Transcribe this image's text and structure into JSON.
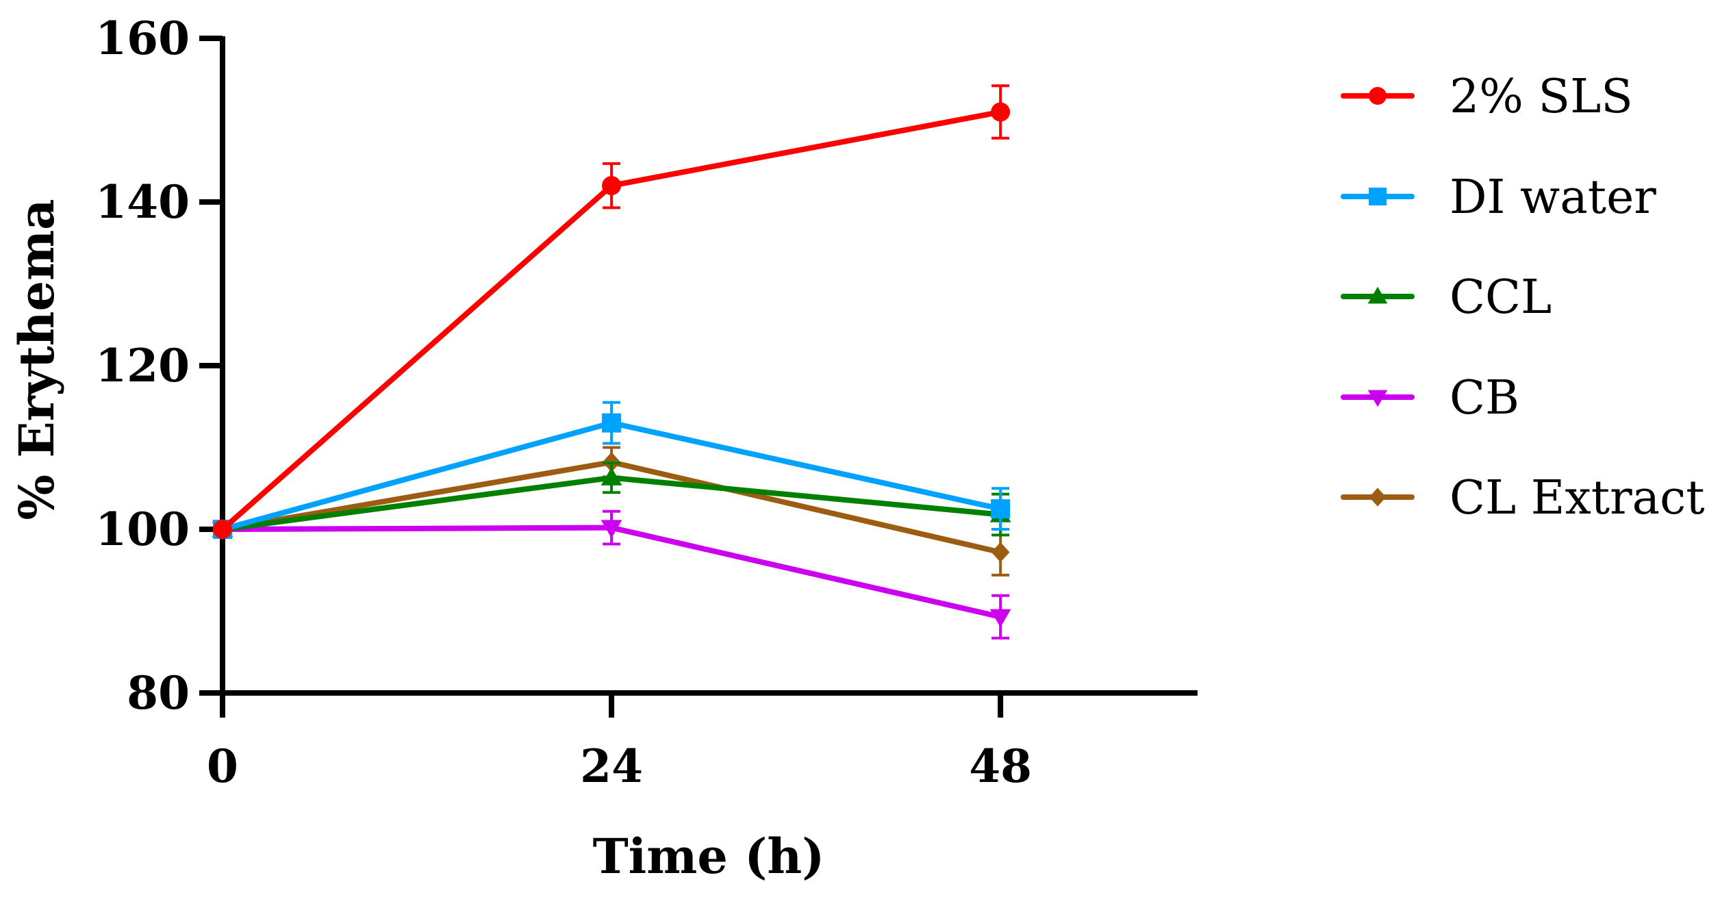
{
  "chart_data": {
    "type": "line",
    "title": "",
    "xlabel": "Time (h)",
    "ylabel": "% Erythema",
    "x": [
      0,
      24,
      48
    ],
    "x_tick_labels": [
      "0",
      "24",
      "48"
    ],
    "xlim": [
      0,
      60
    ],
    "ylim": [
      80,
      160
    ],
    "y_ticks": [
      80,
      100,
      120,
      140,
      160
    ],
    "y_tick_labels": [
      "80",
      "100",
      "120",
      "140",
      "160"
    ],
    "grid": false,
    "legend_position": "right",
    "series": [
      {
        "name": "2% SLS",
        "color": "#ff0000",
        "marker": "circle",
        "values": [
          100,
          142,
          151
        ],
        "errors": [
          0,
          2.7,
          3.2
        ]
      },
      {
        "name": "DI water",
        "color": "#00a2ff",
        "marker": "square",
        "values": [
          100,
          113,
          102.5
        ],
        "errors": [
          0,
          2.5,
          2.5
        ]
      },
      {
        "name": "CCL",
        "color": "#008000",
        "marker": "triangle-up",
        "values": [
          100,
          106.3,
          101.8
        ],
        "errors": [
          0,
          1.8,
          2.5
        ]
      },
      {
        "name": "CB",
        "color": "#cc00ee",
        "marker": "triangle-down",
        "values": [
          100,
          100.2,
          89.3
        ],
        "errors": [
          0,
          2.0,
          2.6
        ]
      },
      {
        "name": "CL Extract",
        "color": "#9c5d12",
        "marker": "diamond",
        "values": [
          100,
          108.2,
          97.2
        ],
        "errors": [
          0,
          1.8,
          2.8
        ]
      }
    ]
  }
}
